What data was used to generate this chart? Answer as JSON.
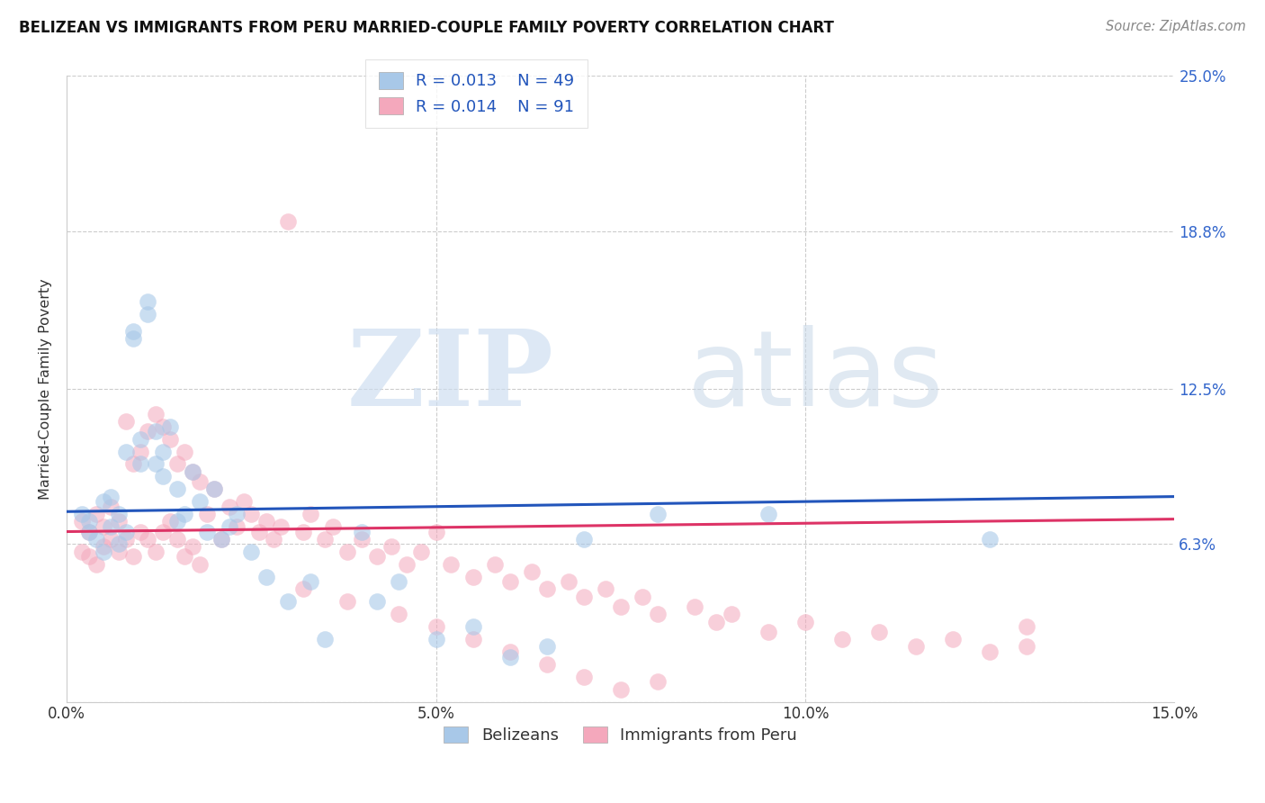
{
  "title": "BELIZEAN VS IMMIGRANTS FROM PERU MARRIED-COUPLE FAMILY POVERTY CORRELATION CHART",
  "source": "Source: ZipAtlas.com",
  "ylabel": "Married-Couple Family Poverty",
  "blue_color": "#a8c8e8",
  "pink_color": "#f4a8bc",
  "blue_line_color": "#2255bb",
  "pink_line_color": "#dd3366",
  "legend_text_color": "#2255bb",
  "legend_r1": "R = 0.013",
  "legend_n1": "N = 49",
  "legend_r2": "R = 0.014",
  "legend_n2": "N = 91",
  "watermark_zip": "ZIP",
  "watermark_atlas": "atlas",
  "label1": "Belizeans",
  "label2": "Immigrants from Peru",
  "ytick_right_labels": [
    "",
    "6.3%",
    "12.5%",
    "18.8%",
    "25.0%"
  ],
  "ytick_vals": [
    0.0,
    0.063,
    0.125,
    0.188,
    0.25
  ],
  "xtick_vals": [
    0.0,
    0.05,
    0.1,
    0.15
  ],
  "xtick_labels": [
    "0.0%",
    "5.0%",
    "10.0%",
    "15.0%"
  ],
  "blue_line_x": [
    0.0,
    0.15
  ],
  "blue_line_y": [
    0.076,
    0.082
  ],
  "pink_line_x": [
    0.0,
    0.15
  ],
  "pink_line_y": [
    0.068,
    0.073
  ],
  "blue_x": [
    0.002,
    0.003,
    0.003,
    0.004,
    0.005,
    0.005,
    0.006,
    0.006,
    0.007,
    0.007,
    0.008,
    0.008,
    0.009,
    0.009,
    0.01,
    0.01,
    0.011,
    0.011,
    0.012,
    0.012,
    0.013,
    0.013,
    0.014,
    0.015,
    0.015,
    0.016,
    0.017,
    0.018,
    0.019,
    0.02,
    0.021,
    0.022,
    0.023,
    0.025,
    0.027,
    0.03,
    0.033,
    0.035,
    0.04,
    0.042,
    0.045,
    0.05,
    0.055,
    0.06,
    0.065,
    0.07,
    0.08,
    0.095,
    0.125
  ],
  "blue_y": [
    0.075,
    0.068,
    0.072,
    0.065,
    0.08,
    0.06,
    0.07,
    0.082,
    0.075,
    0.063,
    0.068,
    0.1,
    0.145,
    0.148,
    0.095,
    0.105,
    0.155,
    0.16,
    0.095,
    0.108,
    0.09,
    0.1,
    0.11,
    0.085,
    0.072,
    0.075,
    0.092,
    0.08,
    0.068,
    0.085,
    0.065,
    0.07,
    0.075,
    0.06,
    0.05,
    0.04,
    0.048,
    0.025,
    0.068,
    0.04,
    0.048,
    0.025,
    0.03,
    0.018,
    0.022,
    0.065,
    0.075,
    0.075,
    0.065
  ],
  "pink_x": [
    0.002,
    0.002,
    0.003,
    0.003,
    0.004,
    0.004,
    0.005,
    0.005,
    0.006,
    0.006,
    0.007,
    0.007,
    0.008,
    0.008,
    0.009,
    0.009,
    0.01,
    0.01,
    0.011,
    0.011,
    0.012,
    0.012,
    0.013,
    0.013,
    0.014,
    0.014,
    0.015,
    0.015,
    0.016,
    0.016,
    0.017,
    0.017,
    0.018,
    0.018,
    0.019,
    0.02,
    0.021,
    0.022,
    0.023,
    0.024,
    0.025,
    0.026,
    0.027,
    0.028,
    0.029,
    0.03,
    0.032,
    0.033,
    0.035,
    0.036,
    0.038,
    0.04,
    0.042,
    0.044,
    0.046,
    0.048,
    0.05,
    0.052,
    0.055,
    0.058,
    0.06,
    0.063,
    0.065,
    0.068,
    0.07,
    0.073,
    0.075,
    0.078,
    0.08,
    0.085,
    0.088,
    0.09,
    0.095,
    0.1,
    0.105,
    0.11,
    0.115,
    0.12,
    0.125,
    0.13,
    0.032,
    0.038,
    0.045,
    0.05,
    0.055,
    0.06,
    0.065,
    0.07,
    0.075,
    0.08,
    0.13
  ],
  "pink_y": [
    0.06,
    0.072,
    0.058,
    0.068,
    0.055,
    0.075,
    0.062,
    0.07,
    0.065,
    0.078,
    0.06,
    0.072,
    0.112,
    0.065,
    0.095,
    0.058,
    0.1,
    0.068,
    0.108,
    0.065,
    0.115,
    0.06,
    0.11,
    0.068,
    0.105,
    0.072,
    0.095,
    0.065,
    0.1,
    0.058,
    0.092,
    0.062,
    0.088,
    0.055,
    0.075,
    0.085,
    0.065,
    0.078,
    0.07,
    0.08,
    0.075,
    0.068,
    0.072,
    0.065,
    0.07,
    0.192,
    0.068,
    0.075,
    0.065,
    0.07,
    0.06,
    0.065,
    0.058,
    0.062,
    0.055,
    0.06,
    0.068,
    0.055,
    0.05,
    0.055,
    0.048,
    0.052,
    0.045,
    0.048,
    0.042,
    0.045,
    0.038,
    0.042,
    0.035,
    0.038,
    0.032,
    0.035,
    0.028,
    0.032,
    0.025,
    0.028,
    0.022,
    0.025,
    0.02,
    0.022,
    0.045,
    0.04,
    0.035,
    0.03,
    0.025,
    0.02,
    0.015,
    0.01,
    0.005,
    0.008,
    0.03
  ]
}
